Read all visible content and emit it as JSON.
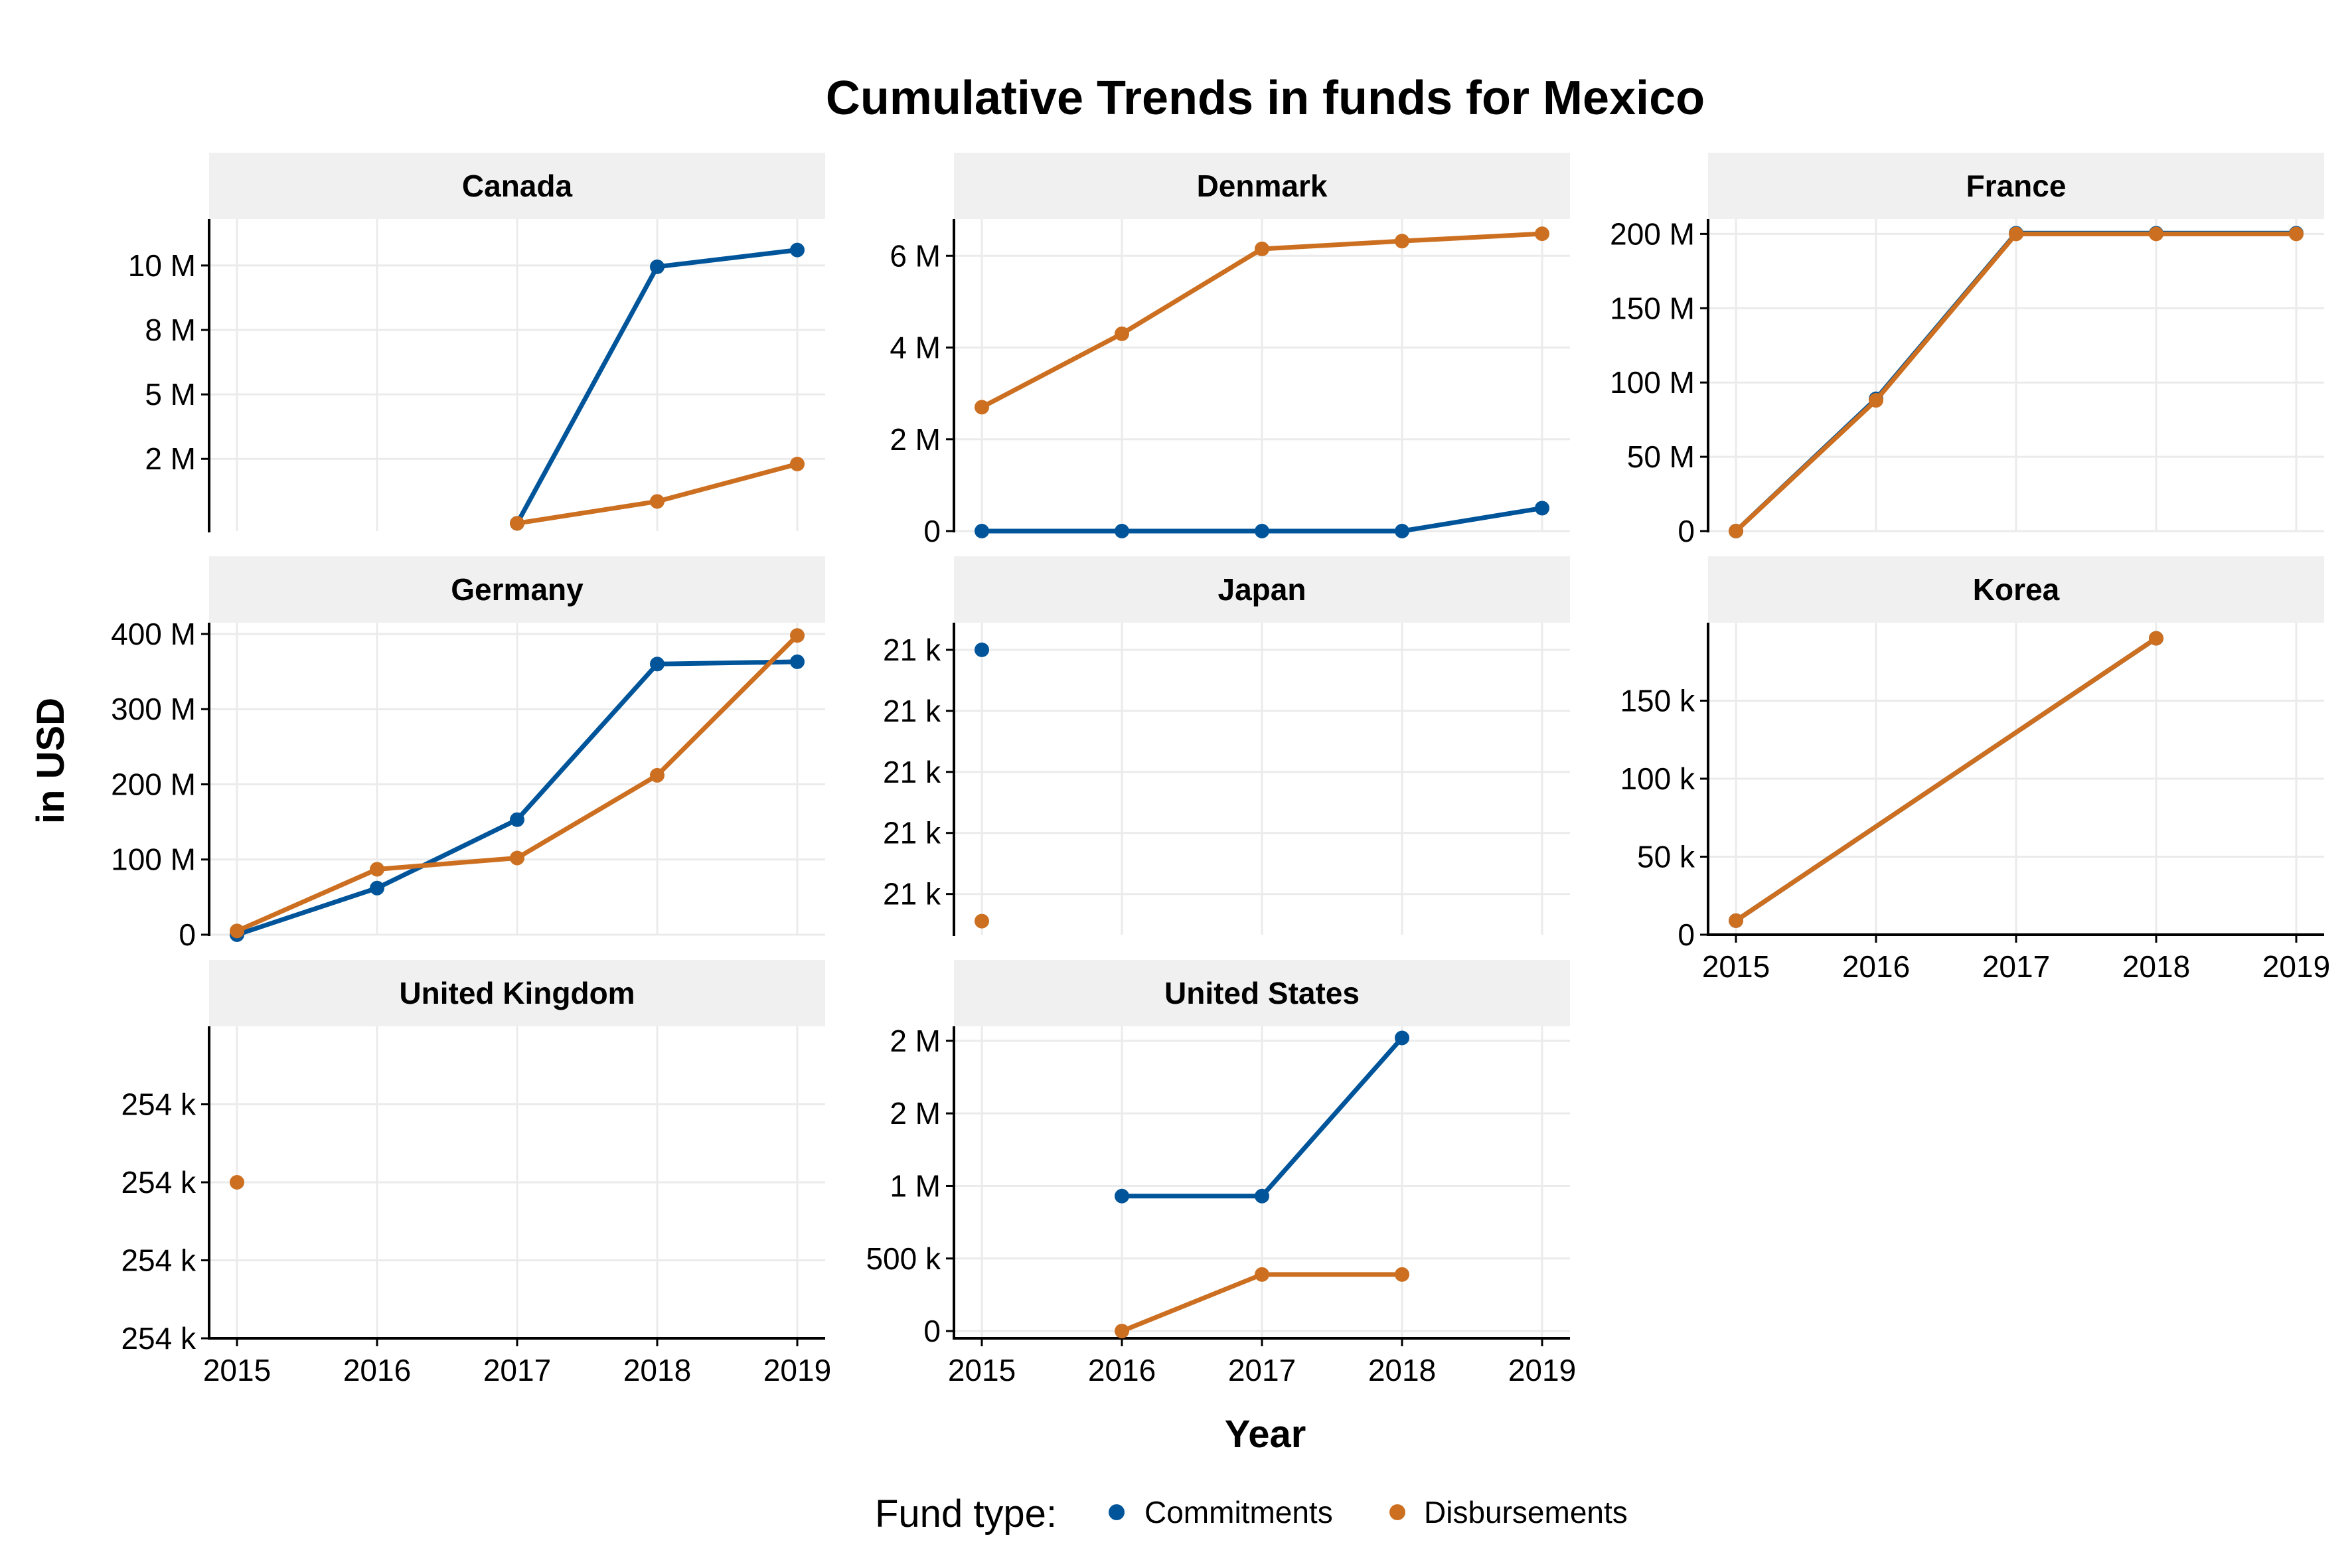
{
  "chart_data": {
    "type": "line",
    "title": "Cumulative Trends in funds for Mexico",
    "xlabel": "Year",
    "ylabel": "in USD",
    "x": [
      2015,
      2016,
      2017,
      2018,
      2019
    ],
    "x_tick_labels": [
      "2015",
      "2016",
      "2017",
      "2018",
      "2019"
    ],
    "legend": {
      "title": "Fund type:",
      "placement": "bottom",
      "entries": [
        {
          "name": "Commitments",
          "color": "#00559a"
        },
        {
          "name": "Disbursements",
          "color": "#cc6f20"
        }
      ]
    },
    "grid": true,
    "panels": [
      {
        "name": "Canada",
        "ylim": [
          -300000,
          11800000
        ],
        "y_ticks": [
          {
            "value": 2500000,
            "label": "2 M"
          },
          {
            "value": 5000000,
            "label": "5 M"
          },
          {
            "value": 7500000,
            "label": "8 M"
          },
          {
            "value": 10000000,
            "label": "10 M"
          }
        ],
        "series": [
          {
            "name": "Commitments",
            "x": [
              2017,
              2018,
              2019
            ],
            "values": [
              0,
              9950000,
              10600000
            ]
          },
          {
            "name": "Disbursements",
            "x": [
              2017,
              2018,
              2019
            ],
            "values": [
              0,
              850000,
              2300000
            ]
          }
        ]
      },
      {
        "name": "Denmark",
        "ylim": [
          0,
          6800000
        ],
        "y_ticks": [
          {
            "value": 0,
            "label": "0"
          },
          {
            "value": 2000000,
            "label": "2 M"
          },
          {
            "value": 4000000,
            "label": "4 M"
          },
          {
            "value": 6000000,
            "label": "6 M"
          }
        ],
        "series": [
          {
            "name": "Commitments",
            "x": [
              2015,
              2016,
              2017,
              2018,
              2019
            ],
            "values": [
              0,
              0,
              0,
              0,
              500000
            ]
          },
          {
            "name": "Disbursements",
            "x": [
              2015,
              2016,
              2017,
              2018,
              2019
            ],
            "values": [
              2700000,
              4300000,
              6150000,
              6320000,
              6480000
            ]
          }
        ]
      },
      {
        "name": "France",
        "ylim": [
          0,
          210000000
        ],
        "y_ticks": [
          {
            "value": 0,
            "label": "0"
          },
          {
            "value": 50000000,
            "label": "50 M"
          },
          {
            "value": 100000000,
            "label": "100 M"
          },
          {
            "value": 150000000,
            "label": "150 M"
          },
          {
            "value": 200000000,
            "label": "200 M"
          }
        ],
        "series": [
          {
            "name": "Commitments",
            "x": [
              2015,
              2016,
              2017,
              2018,
              2019
            ],
            "values": [
              0,
              89000000,
              200500000,
              200500000,
              200500000
            ]
          },
          {
            "name": "Disbursements",
            "x": [
              2015,
              2016,
              2017,
              2018,
              2019
            ],
            "values": [
              0,
              88000000,
              200000000,
              200000000,
              200000000
            ]
          }
        ]
      },
      {
        "name": "Germany",
        "ylim": [
          0,
          415000000
        ],
        "y_ticks": [
          {
            "value": 0,
            "label": "0"
          },
          {
            "value": 100000000,
            "label": "100 M"
          },
          {
            "value": 200000000,
            "label": "200 M"
          },
          {
            "value": 300000000,
            "label": "300 M"
          },
          {
            "value": 400000000,
            "label": "400 M"
          }
        ],
        "series": [
          {
            "name": "Commitments",
            "x": [
              2015,
              2016,
              2017,
              2018,
              2019
            ],
            "values": [
              0,
              62000000,
              153000000,
              360000000,
              363000000
            ]
          },
          {
            "name": "Disbursements",
            "x": [
              2015,
              2016,
              2017,
              2018,
              2019
            ],
            "values": [
              5000000,
              87000000,
              102000000,
              212000000,
              398000000
            ]
          }
        ]
      },
      {
        "name": "Japan",
        "ylim": [
          21390,
          21620
        ],
        "y_ticks": [
          {
            "value": 21420,
            "label": "21 k"
          },
          {
            "value": 21465,
            "label": "21 k"
          },
          {
            "value": 21510,
            "label": "21 k"
          },
          {
            "value": 21555,
            "label": "21 k"
          },
          {
            "value": 21600,
            "label": "21 k"
          }
        ],
        "series": [
          {
            "name": "Commitments",
            "x": [
              2015
            ],
            "values": [
              21600
            ]
          },
          {
            "name": "Disbursements",
            "x": [
              2015
            ],
            "values": [
              21400
            ]
          }
        ]
      },
      {
        "name": "Korea",
        "ylim": [
          0,
          200000
        ],
        "y_ticks": [
          {
            "value": 0,
            "label": "0"
          },
          {
            "value": 50000,
            "label": "50 k"
          },
          {
            "value": 100000,
            "label": "100 k"
          },
          {
            "value": 150000,
            "label": "150 k"
          }
        ],
        "series": [
          {
            "name": "Commitments",
            "x": [
              2015,
              2018
            ],
            "values": [
              9000,
              190000
            ]
          },
          {
            "name": "Disbursements",
            "x": [
              2015,
              2018
            ],
            "values": [
              9000,
              190000
            ]
          }
        ]
      },
      {
        "name": "United Kingdom",
        "ylim": [
          253800,
          254200
        ],
        "y_ticks": [
          {
            "value": 253800,
            "label": "254 k"
          },
          {
            "value": 253900,
            "label": "254 k"
          },
          {
            "value": 254000,
            "label": "254 k"
          },
          {
            "value": 254100,
            "label": "254 k"
          }
        ],
        "series": [
          {
            "name": "Disbursements",
            "x": [
              2015
            ],
            "values": [
              254000
            ]
          }
        ]
      },
      {
        "name": "United States",
        "ylim": [
          -50000,
          2100000
        ],
        "y_ticks": [
          {
            "value": 0,
            "label": "0"
          },
          {
            "value": 500000,
            "label": "500 k"
          },
          {
            "value": 1000000,
            "label": "1 M"
          },
          {
            "value": 1500000,
            "label": "2 M"
          },
          {
            "value": 2000000,
            "label": "2 M"
          }
        ],
        "series": [
          {
            "name": "Commitments",
            "x": [
              2016,
              2017,
              2018
            ],
            "values": [
              930000,
              930000,
              2020000
            ]
          },
          {
            "name": "Disbursements",
            "x": [
              2016,
              2017,
              2018
            ],
            "values": [
              0,
              390000,
              390000
            ]
          }
        ]
      }
    ]
  }
}
